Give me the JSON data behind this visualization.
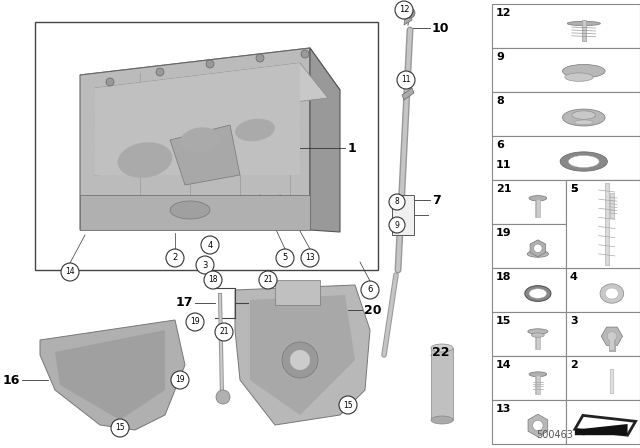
{
  "bg_color": "#f5f5f5",
  "catalog_number": "500463",
  "panel_border": "#888888",
  "panel_items": [
    {
      "num": "12",
      "row": 0,
      "col": 1,
      "type": "screw"
    },
    {
      "num": "9",
      "row": 1,
      "col": 1,
      "type": "clip"
    },
    {
      "num": "8",
      "row": 2,
      "col": 1,
      "type": "grommet"
    },
    {
      "num": "6",
      "row": 3,
      "col": 1,
      "type": "oring_sm"
    },
    {
      "num": "11",
      "row": 3,
      "col": 0,
      "type": "label_only"
    },
    {
      "num": "21",
      "row": 4,
      "col": 0,
      "type": "bolt_short"
    },
    {
      "num": "5",
      "row": 4,
      "col": 1,
      "type": "stud_long"
    },
    {
      "num": "19",
      "row": 5,
      "col": 0,
      "type": "flange_nut"
    },
    {
      "num": "18",
      "row": 6,
      "col": 0,
      "type": "oring_lg"
    },
    {
      "num": "4",
      "row": 6,
      "col": 1,
      "type": "washer"
    },
    {
      "num": "15",
      "row": 7,
      "col": 0,
      "type": "bolt_washer"
    },
    {
      "num": "3",
      "row": 7,
      "col": 1,
      "type": "drain_plug"
    },
    {
      "num": "14",
      "row": 8,
      "col": 0,
      "type": "bolt_hex"
    },
    {
      "num": "2",
      "row": 8,
      "col": 1,
      "type": "stud_sm"
    },
    {
      "num": "13",
      "row": 9,
      "col": 0,
      "type": "hex_nut"
    },
    {
      "num": "",
      "row": 9,
      "col": 1,
      "type": "gasket_shape"
    }
  ]
}
